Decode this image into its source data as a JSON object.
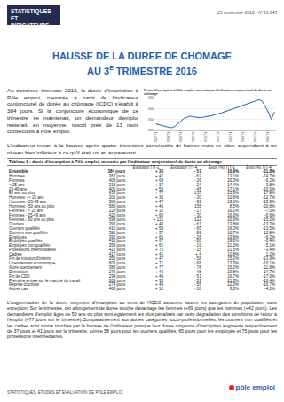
{
  "header": {
    "logo": [
      "STATISTIQUES",
      "ET INDICATEURS"
    ],
    "date": "25 novembre 2016 - N°16.045"
  },
  "title": {
    "line1": "HAUSSE DE LA DUREE DE CHOMAGE",
    "line2_before": "AU 3",
    "line2_sup": "E",
    "line2_after": " TRIMESTRE 2016"
  },
  "intro": "Au troisième trimestre 2016, la durée d'inscription à Pôle emploi, mesurée à partir de l'indicateur conjoncturel de durée au chômage (ICDC) s'établit à 384 jours. Si la conjoncture économique de ce trimestre se maintenait, un demandeur d'emploi resterait, en moyenne, inscrit près de 13 mois consécutifs à Pôle emploi.",
  "intro2": "L'indicateur repart à la hausse après quatre trimestres consécutifs de baisse mais se situe cependant à un niveau bien inférieur à ce qu'il était un an auparavant.",
  "chart_data": {
    "type": "line",
    "title": "Durée d'inscription à Pôle emploi, mesurée par l'indicateur conjoncturel de durée au chômage",
    "categories": [
      "2007T1",
      null,
      null,
      null,
      "2008T1",
      null,
      null,
      null,
      "2009T1",
      null,
      null,
      null,
      "2010T1",
      null,
      null,
      null,
      "2011T1",
      null,
      null,
      null,
      "2012T1",
      null,
      null,
      null,
      "2013T1",
      null,
      null,
      null,
      "2014T1",
      null,
      null,
      null,
      "2015T1",
      null,
      null,
      null,
      "2016T1",
      null,
      null
    ],
    "values": [
      330,
      325,
      320,
      318,
      315,
      312,
      318,
      330,
      345,
      355,
      360,
      365,
      362,
      360,
      358,
      360,
      362,
      365,
      368,
      372,
      375,
      380,
      385,
      390,
      395,
      400,
      405,
      410,
      415,
      420,
      425,
      432,
      438,
      440,
      435,
      410,
      385,
      351,
      384
    ],
    "color": "#1f5ea8",
    "ylim": [
      300,
      450
    ],
    "yticks": [
      300,
      350,
      400,
      450
    ],
    "grid": true
  },
  "table": {
    "caption": "Tableau 1 : durée d'inscription à Pôle emploi, mesurée par l'indicateur conjoncturel de durée au chômage",
    "header": [
      "",
      "",
      "Évolution T/T-1",
      "Évolution T/T-4",
      "Évol. (%) T/T-1",
      "Évol.(%) T/T-4"
    ],
    "rows": [
      {
        "cells": [
          "Ensemble",
          "384 jours",
          "+ 33",
          "- 51",
          "10,9%",
          "-11,8%"
        ],
        "sub": false
      },
      {
        "cells": [
          "Hommes",
          "362 jours",
          "+ 42",
          "- 62",
          "13,1%",
          "-14,7%"
        ],
        "sub": false
      },
      {
        "cells": [
          "Femmes",
          "408 jours",
          "+ 69",
          "- 26",
          "20,3%",
          "-6,2%"
        ],
        "sub": false
      },
      {
        "cells": [
          "< 25 ans",
          "218 jours",
          "+ 17",
          "- 24",
          "14,4%",
          "-9,8%"
        ],
        "sub": false
      },
      {
        "cells": [
          "25-49 ans",
          "405 jours",
          "+ 58",
          "- 45",
          "17,1%",
          "-10,0%"
        ],
        "sub": false
      },
      {
        "cells": [
          "50 ans ou plus",
          "634 jours",
          "+ 77",
          "- 137",
          "13,9%",
          "-17,8%"
        ],
        "sub": false
      },
      {
        "cells": [
          "Hommes - < 25 ans",
          "206 jours",
          "+ 30",
          "- 30",
          "10,6%",
          "-12,7%"
        ],
        "sub": false
      },
      {
        "cells": [
          "Hommes - 25-49 ans",
          "386 jours",
          "+ 47",
          "- 93",
          "13,8%",
          "-13,9%"
        ],
        "sub": false
      },
      {
        "cells": [
          "Hommes - 50 ans ou plus",
          "580 jours",
          "+ 46",
          "- 155",
          "8,5%",
          "-20,8%"
        ],
        "sub": false
      },
      {
        "cells": [
          "Femmes - < 25 ans",
          "228 jours",
          "+ 32",
          "- 17",
          "16,1%",
          "-7,0%"
        ],
        "sub": false
      },
      {
        "cells": [
          "Femmes - 25-49 ans",
          "420 jours",
          "+ 60",
          "- 30",
          "16,6%",
          "-6,6%"
        ],
        "sub": false
      },
      {
        "cells": [
          "Femmes - 50 ans ou plus",
          "698 jours",
          "+ 115",
          "- 122",
          "20,0%",
          "-15,0%"
        ],
        "sub": false
      },
      {
        "cells": [
          "Ouvriers",
          "395 jours",
          "+ 48",
          "- 61",
          "13,8%",
          "-13,3%"
        ],
        "sub": false
      },
      {
        "cells": [
          "Ouvriers qualifiés",
          "416 jours",
          "+ 58",
          "- 65",
          "16,3%",
          "-13,5%"
        ],
        "sub": true
      },
      {
        "cells": [
          "Ouvriers non qualifiés",
          "381 jours",
          "+ 37",
          "- 56",
          "10,7%",
          "-12,8%"
        ],
        "sub": true
      },
      {
        "cells": [
          "Employés",
          "395 jours",
          "+ 65",
          "- 26",
          "19,8%",
          "-6,2%"
        ],
        "sub": false
      },
      {
        "cells": [
          "Employés qualifiés",
          "416 jours",
          "+ 67",
          "- 28",
          "19,2%",
          "-6,4%"
        ],
        "sub": true
      },
      {
        "cells": [
          "Employés non qualifiés",
          "354 jours",
          "+ 62",
          "- 19",
          "21,2%",
          "-5,1%"
        ],
        "sub": true
      },
      {
        "cells": [
          "Professions intermédiaires",
          "422 jours",
          "+ 75",
          "- 15",
          "21,5%",
          "-3,4%"
        ],
        "sub": false
      },
      {
        "cells": [
          "Cadres",
          "417 jours",
          "+ 41",
          "+ 4",
          "10,8%",
          "1,2%"
        ],
        "sub": false
      },
      {
        "cells": [
          "Fin de mission d'intérim",
          "355 jours",
          "+ 47",
          "- 58",
          "15,2%",
          "-13,9%"
        ],
        "sub": false
      },
      {
        "cells": [
          "Licenciement économique",
          "605 jours",
          "+ 71",
          "- 68",
          "13,3%",
          "-10,1%"
        ],
        "sub": false
      },
      {
        "cells": [
          "Autre licenciement",
          "383 jours",
          "+ 77",
          "- 78",
          "15,2%",
          "-11,8%"
        ],
        "sub": false
      },
      {
        "cells": [
          "Démission",
          "276 jours",
          "+ 46",
          "- 48",
          "19,8%",
          "-14,7%"
        ],
        "sub": false
      },
      {
        "cells": [
          "Fin de CDD",
          "294 jours",
          "+ 49",
          "- 51",
          "16,7%",
          "-17,0%"
        ],
        "sub": false
      },
      {
        "cells": [
          "Première entrée sur le marché du travail",
          "280 jours",
          "+ 33",
          "- 33",
          "21,3%",
          "-10,4%"
        ],
        "sub": false
      },
      {
        "cells": [
          "Reprise d'activité",
          "274 jours",
          "+ 49",
          "- 55",
          "22,0%",
          "-16,7%"
        ],
        "sub": false
      },
      {
        "cells": [
          "Autres cas",
          "408 jours",
          "+ 16",
          "- 18",
          "3,2%",
          "-4,2%"
        ],
        "sub": false
      }
    ]
  },
  "body": "L'augmentation de la durée moyenne d'inscription au sens de l'ICDC concerne toutes les catégories de population, sans exception. Sur le trimestre, cet allongement de durée touche davantage les femmes (+69 jours) que les hommes (+42 jours). Les demandeurs d'emploi âgés de 50 ans ou plus sont également les plus pénalisés par cette dégradation des conditions de retour à l'emploi (+77 jours sur le trimestre).Comparativement aux autres catégories socio-professionnelles, les ouvriers non qualifiés et les cadres sont moins touchés par la hausse de l'indicateur puisque leur durée moyenne d'inscription augmente respectivement de 37 jours et 41 jours sur le trimestre, contre 58 jours pour les ouvriers qualifiés, 65 jours pour les employés et 75 jours pour les professions intermédiaires.",
  "footer": {
    "text": "STATISTIQUES, ETUDES ET EVALUATION DE PÔLE EMPLOI",
    "logo": "pôle emploi"
  }
}
